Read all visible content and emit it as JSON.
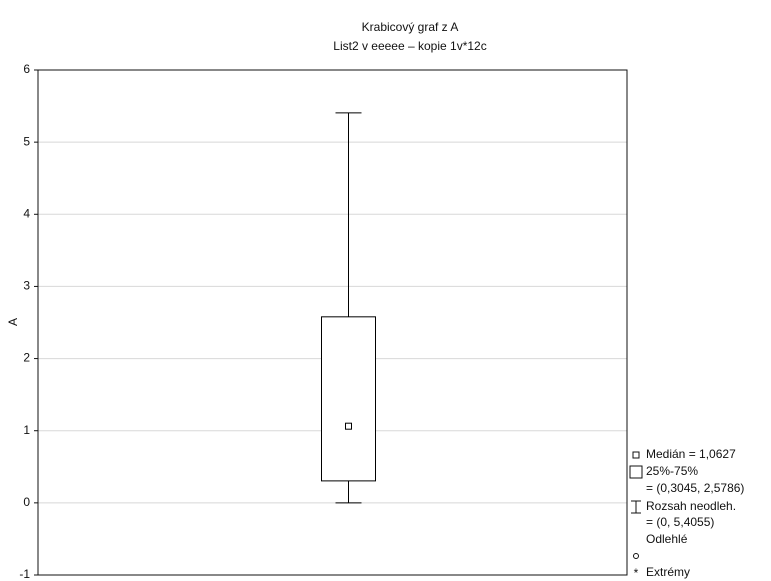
{
  "chart_data": {
    "type": "box",
    "title": "Krabicový graf z A",
    "subtitle": "List2 v eeeee – kopie 1v*12c",
    "y_label": "A",
    "ylim": [
      -1,
      6
    ],
    "yticks": [
      -1,
      0,
      1,
      2,
      3,
      4,
      5,
      6
    ],
    "grid": true,
    "color": "#000000",
    "boxes": [
      {
        "min": 0,
        "q1": 0.3045,
        "median": 1.0627,
        "q3": 2.5786,
        "max": 5.4055
      }
    ],
    "legend": [
      "Medián = 1,0627",
      "25%-75%",
      "= (0,3045, 2,5786)",
      "Rozsah neodleh.",
      "= (0, 5,4055)",
      "Odlehlé",
      "Extrémy"
    ],
    "legend_position": "lower right"
  }
}
